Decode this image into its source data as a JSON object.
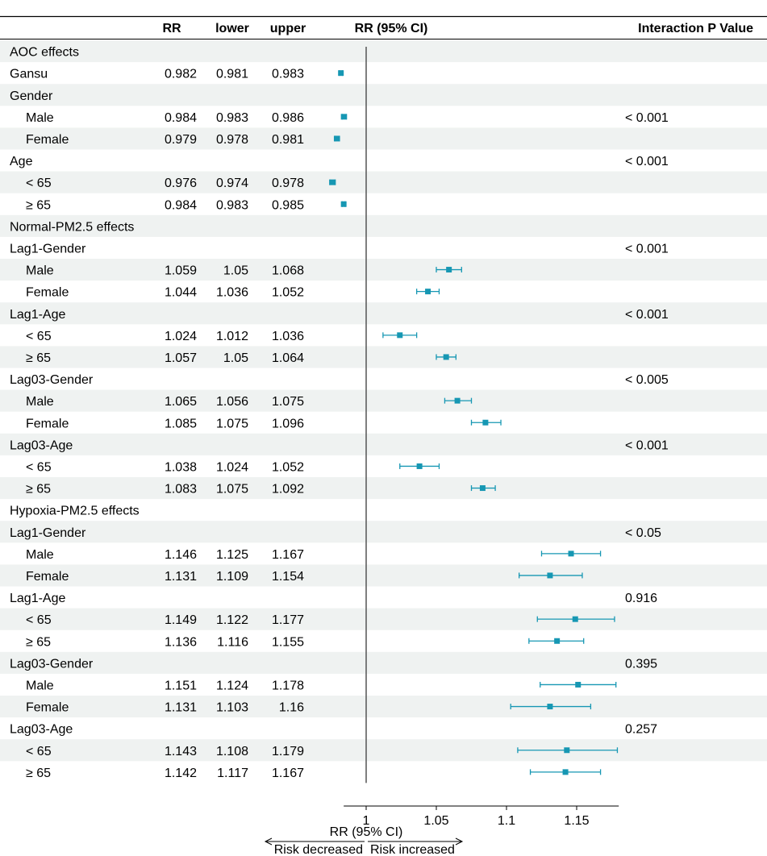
{
  "header": {
    "rr": "RR",
    "lower": "lower",
    "upper": "upper",
    "plot": "RR (95% CI)",
    "pvalue": "Interaction P Value"
  },
  "chart_data": {
    "type": "forest",
    "reference_value": 1,
    "xlim": [
      0.984,
      1.18
    ],
    "xticks": [
      1,
      1.05,
      1.1,
      1.15
    ],
    "xtick_labels": [
      "1",
      "1.05",
      "1.1",
      "1.15"
    ],
    "xlabel": "RR (95% CI)",
    "left_annotation": "Risk decreased",
    "right_annotation": "Risk increased",
    "marker_color": "#1697b3",
    "stripe_color": "#eff2f1",
    "rows": [
      {
        "label": "AOC effects",
        "indent": false,
        "header": true,
        "rr": null,
        "lower": null,
        "upper": null,
        "p": ""
      },
      {
        "label": "Gansu",
        "indent": false,
        "header": false,
        "rr": 0.982,
        "lower": 0.981,
        "upper": 0.983,
        "rr_text": "0.982",
        "lower_text": "0.981",
        "upper_text": "0.983",
        "p": ""
      },
      {
        "label": "Gender",
        "indent": false,
        "header": true,
        "rr": null,
        "lower": null,
        "upper": null,
        "p": ""
      },
      {
        "label": "Male",
        "indent": true,
        "header": false,
        "rr": 0.984,
        "lower": 0.983,
        "upper": 0.986,
        "rr_text": "0.984",
        "lower_text": "0.983",
        "upper_text": "0.986",
        "p": "< 0.001"
      },
      {
        "label": "Female",
        "indent": true,
        "header": false,
        "rr": 0.979,
        "lower": 0.978,
        "upper": 0.981,
        "rr_text": "0.979",
        "lower_text": "0.978",
        "upper_text": "0.981",
        "p": ""
      },
      {
        "label": "Age",
        "indent": false,
        "header": true,
        "rr": null,
        "lower": null,
        "upper": null,
        "p": "< 0.001"
      },
      {
        "label": "< 65",
        "indent": true,
        "header": false,
        "rr": 0.976,
        "lower": 0.974,
        "upper": 0.978,
        "rr_text": "0.976",
        "lower_text": "0.974",
        "upper_text": "0.978",
        "p": ""
      },
      {
        "label": "≥ 65",
        "indent": true,
        "header": false,
        "rr": 0.984,
        "lower": 0.983,
        "upper": 0.985,
        "rr_text": "0.984",
        "lower_text": "0.983",
        "upper_text": "0.985",
        "p": ""
      },
      {
        "label": "Normal-PM2.5 effects",
        "indent": false,
        "header": true,
        "rr": null,
        "lower": null,
        "upper": null,
        "p": ""
      },
      {
        "label": "Lag1-Gender",
        "indent": false,
        "header": true,
        "rr": null,
        "lower": null,
        "upper": null,
        "p": "< 0.001"
      },
      {
        "label": "Male",
        "indent": true,
        "header": false,
        "rr": 1.059,
        "lower": 1.05,
        "upper": 1.068,
        "rr_text": "1.059",
        "lower_text": "1.05",
        "upper_text": "1.068",
        "p": ""
      },
      {
        "label": "Female",
        "indent": true,
        "header": false,
        "rr": 1.044,
        "lower": 1.036,
        "upper": 1.052,
        "rr_text": "1.044",
        "lower_text": "1.036",
        "upper_text": "1.052",
        "p": ""
      },
      {
        "label": "Lag1-Age",
        "indent": false,
        "header": true,
        "rr": null,
        "lower": null,
        "upper": null,
        "p": "< 0.001"
      },
      {
        "label": "< 65",
        "indent": true,
        "header": false,
        "rr": 1.024,
        "lower": 1.012,
        "upper": 1.036,
        "rr_text": "1.024",
        "lower_text": "1.012",
        "upper_text": "1.036",
        "p": ""
      },
      {
        "label": "≥ 65",
        "indent": true,
        "header": false,
        "rr": 1.057,
        "lower": 1.05,
        "upper": 1.064,
        "rr_text": "1.057",
        "lower_text": "1.05",
        "upper_text": "1.064",
        "p": ""
      },
      {
        "label": "Lag03-Gender",
        "indent": false,
        "header": true,
        "rr": null,
        "lower": null,
        "upper": null,
        "p": "< 0.005"
      },
      {
        "label": "Male",
        "indent": true,
        "header": false,
        "rr": 1.065,
        "lower": 1.056,
        "upper": 1.075,
        "rr_text": "1.065",
        "lower_text": "1.056",
        "upper_text": "1.075",
        "p": ""
      },
      {
        "label": "Female",
        "indent": true,
        "header": false,
        "rr": 1.085,
        "lower": 1.075,
        "upper": 1.096,
        "rr_text": "1.085",
        "lower_text": "1.075",
        "upper_text": "1.096",
        "p": ""
      },
      {
        "label": "Lag03-Age",
        "indent": false,
        "header": true,
        "rr": null,
        "lower": null,
        "upper": null,
        "p": "< 0.001"
      },
      {
        "label": "< 65",
        "indent": true,
        "header": false,
        "rr": 1.038,
        "lower": 1.024,
        "upper": 1.052,
        "rr_text": "1.038",
        "lower_text": "1.024",
        "upper_text": "1.052",
        "p": ""
      },
      {
        "label": "≥ 65",
        "indent": true,
        "header": false,
        "rr": 1.083,
        "lower": 1.075,
        "upper": 1.092,
        "rr_text": "1.083",
        "lower_text": "1.075",
        "upper_text": "1.092",
        "p": ""
      },
      {
        "label": "Hypoxia-PM2.5 effects",
        "indent": false,
        "header": true,
        "rr": null,
        "lower": null,
        "upper": null,
        "p": ""
      },
      {
        "label": "Lag1-Gender",
        "indent": false,
        "header": true,
        "rr": null,
        "lower": null,
        "upper": null,
        "p": "< 0.05"
      },
      {
        "label": "Male",
        "indent": true,
        "header": false,
        "rr": 1.146,
        "lower": 1.125,
        "upper": 1.167,
        "rr_text": "1.146",
        "lower_text": "1.125",
        "upper_text": "1.167",
        "p": ""
      },
      {
        "label": "Female",
        "indent": true,
        "header": false,
        "rr": 1.131,
        "lower": 1.109,
        "upper": 1.154,
        "rr_text": "1.131",
        "lower_text": "1.109",
        "upper_text": "1.154",
        "p": ""
      },
      {
        "label": "Lag1-Age",
        "indent": false,
        "header": true,
        "rr": null,
        "lower": null,
        "upper": null,
        "p": "0.916"
      },
      {
        "label": "< 65",
        "indent": true,
        "header": false,
        "rr": 1.149,
        "lower": 1.122,
        "upper": 1.177,
        "rr_text": "1.149",
        "lower_text": "1.122",
        "upper_text": "1.177",
        "p": ""
      },
      {
        "label": "≥ 65",
        "indent": true,
        "header": false,
        "rr": 1.136,
        "lower": 1.116,
        "upper": 1.155,
        "rr_text": "1.136",
        "lower_text": "1.116",
        "upper_text": "1.155",
        "p": ""
      },
      {
        "label": "Lag03-Gender",
        "indent": false,
        "header": true,
        "rr": null,
        "lower": null,
        "upper": null,
        "p": "0.395"
      },
      {
        "label": "Male",
        "indent": true,
        "header": false,
        "rr": 1.151,
        "lower": 1.124,
        "upper": 1.178,
        "rr_text": "1.151",
        "lower_text": "1.124",
        "upper_text": "1.178",
        "p": ""
      },
      {
        "label": "Female",
        "indent": true,
        "header": false,
        "rr": 1.131,
        "lower": 1.103,
        "upper": 1.16,
        "rr_text": "1.131",
        "lower_text": "1.103",
        "upper_text": "1.16",
        "p": ""
      },
      {
        "label": "Lag03-Age",
        "indent": false,
        "header": true,
        "rr": null,
        "lower": null,
        "upper": null,
        "p": "0.257"
      },
      {
        "label": "< 65",
        "indent": true,
        "header": false,
        "rr": 1.143,
        "lower": 1.108,
        "upper": 1.179,
        "rr_text": "1.143",
        "lower_text": "1.108",
        "upper_text": "1.179",
        "p": ""
      },
      {
        "label": "≥ 65",
        "indent": true,
        "header": false,
        "rr": 1.142,
        "lower": 1.117,
        "upper": 1.167,
        "rr_text": "1.142",
        "lower_text": "1.117",
        "upper_text": "1.167",
        "p": ""
      }
    ]
  }
}
